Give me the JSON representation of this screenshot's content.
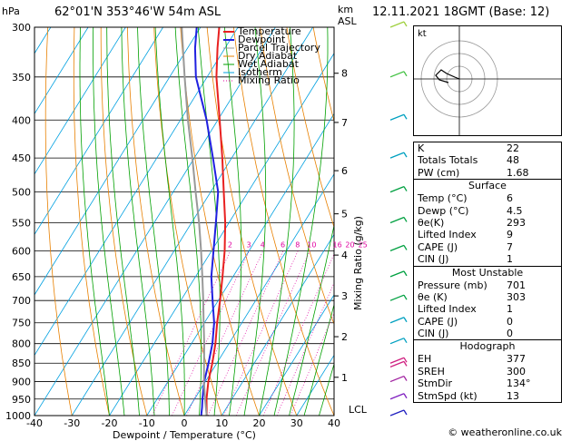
{
  "header": {
    "location": "62°01'N  353°46'W  54m  ASL",
    "datetime": "12.11.2021  18GMT  (Base: 12)",
    "hpa_unit": "hPa",
    "km_unit": "km",
    "asl_unit": "ASL"
  },
  "chart_data": {
    "type": "line",
    "xlabel": "Dewpoint / Temperature (°C)",
    "ylabel_right": "Mixing Ratio (g/kg)",
    "x_ticks": [
      -40,
      -30,
      -20,
      -10,
      0,
      10,
      20,
      30,
      40
    ],
    "xlim": [
      -40,
      40
    ],
    "ylim_hpa": [
      1000,
      300
    ],
    "y_scale": "log",
    "pressure_ticks": [
      300,
      350,
      400,
      450,
      500,
      550,
      600,
      650,
      700,
      750,
      800,
      850,
      900,
      950,
      1000
    ],
    "km_ticks": [
      {
        "km": "1",
        "p": 888
      },
      {
        "km": "2",
        "p": 783
      },
      {
        "km": "3",
        "p": 690
      },
      {
        "km": "4",
        "p": 608
      },
      {
        "km": "5",
        "p": 535
      },
      {
        "km": "6",
        "p": 468
      },
      {
        "km": "7",
        "p": 403
      },
      {
        "km": "8",
        "p": 346
      }
    ],
    "lcl": {
      "label": "LCL",
      "p": 981
    },
    "mixing_ratio_labels": [
      "2",
      "3",
      "4",
      "6",
      "8",
      "10",
      "16",
      "20",
      "25"
    ],
    "legend": [
      "Temperature",
      "Dewpoint",
      "Parcel Trajectory",
      "Dry Adiabat",
      "Wet Adiabat",
      "Isotherm",
      "Mixing Ratio"
    ],
    "legend_colors": [
      "#e82020",
      "#2020e0",
      "#999999",
      "#e88000",
      "#00a000",
      "#00a0e0",
      "#e000a0"
    ],
    "series": [
      {
        "name": "Temperature",
        "points": [
          [
            1000,
            6
          ],
          [
            975,
            4.6
          ],
          [
            950,
            3.2
          ],
          [
            900,
            0.8
          ],
          [
            850,
            -1.2
          ],
          [
            800,
            -3.6
          ],
          [
            750,
            -6.6
          ],
          [
            700,
            -9.5
          ],
          [
            650,
            -12.8
          ],
          [
            600,
            -16.5
          ],
          [
            550,
            -21
          ],
          [
            500,
            -26.5
          ],
          [
            450,
            -32.5
          ],
          [
            400,
            -39.5
          ],
          [
            350,
            -47.5
          ],
          [
            320,
            -52
          ],
          [
            300,
            -55
          ]
        ]
      },
      {
        "name": "Dewpoint",
        "points": [
          [
            1000,
            4.5
          ],
          [
            975,
            3.4
          ],
          [
            950,
            2.1
          ],
          [
            900,
            -0.3
          ],
          [
            850,
            -2.2
          ],
          [
            800,
            -4.4
          ],
          [
            750,
            -7.4
          ],
          [
            700,
            -11.5
          ],
          [
            650,
            -15.8
          ],
          [
            600,
            -19.5
          ],
          [
            550,
            -23.5
          ],
          [
            500,
            -28
          ],
          [
            450,
            -35
          ],
          [
            400,
            -43
          ],
          [
            350,
            -53
          ],
          [
            320,
            -58
          ],
          [
            300,
            -61
          ]
        ]
      },
      {
        "name": "Parcel Trajectory",
        "points": [
          [
            1000,
            6
          ],
          [
            981,
            4.8
          ],
          [
            950,
            2.8
          ],
          [
            900,
            -0.4
          ],
          [
            850,
            -3.4
          ],
          [
            800,
            -6.6
          ],
          [
            750,
            -10.2
          ],
          [
            700,
            -14
          ],
          [
            650,
            -18.2
          ],
          [
            600,
            -22.8
          ],
          [
            550,
            -28
          ],
          [
            500,
            -34
          ],
          [
            450,
            -40.5
          ],
          [
            400,
            -48
          ],
          [
            350,
            -56
          ],
          [
            300,
            -65
          ]
        ]
      }
    ],
    "winds": [
      {
        "p": 1000,
        "color": "#2020c0"
      },
      {
        "p": 950,
        "color": "#8020c0"
      },
      {
        "p": 900,
        "color": "#a020a0"
      },
      {
        "p": 860,
        "color": "#d02080"
      },
      {
        "p": 850,
        "color": "#d02080"
      },
      {
        "p": 800,
        "color": "#00a0c0"
      },
      {
        "p": 750,
        "color": "#00a0c0"
      },
      {
        "p": 700,
        "color": "#00a040"
      },
      {
        "p": 650,
        "color": "#00a040"
      },
      {
        "p": 600,
        "color": "#00a040"
      },
      {
        "p": 550,
        "color": "#00a040"
      },
      {
        "p": 500,
        "color": "#00a040"
      },
      {
        "p": 450,
        "color": "#00a0c0"
      },
      {
        "p": 400,
        "color": "#00a0c0"
      },
      {
        "p": 350,
        "color": "#40c040"
      },
      {
        "p": 300,
        "color": "#a0d040"
      }
    ]
  },
  "hodograph": {
    "unit_label": "kt"
  },
  "indices": {
    "rows": [
      {
        "k": "K",
        "v": "22"
      },
      {
        "k": "Totals Totals",
        "v": "48"
      },
      {
        "k": "PW (cm)",
        "v": "1.68"
      }
    ]
  },
  "surface": {
    "title": "Surface",
    "rows": [
      {
        "k": "Temp (°C)",
        "v": "6"
      },
      {
        "k": "Dewp (°C)",
        "v": "4.5"
      },
      {
        "k": "θe(K)",
        "v": "293"
      },
      {
        "k": "Lifted Index",
        "v": "9"
      },
      {
        "k": "CAPE (J)",
        "v": "7"
      },
      {
        "k": "CIN (J)",
        "v": "1"
      }
    ]
  },
  "most_unstable": {
    "title": "Most Unstable",
    "rows": [
      {
        "k": "Pressure (mb)",
        "v": "701"
      },
      {
        "k": "θe (K)",
        "v": "303"
      },
      {
        "k": "Lifted Index",
        "v": "1"
      },
      {
        "k": "CAPE (J)",
        "v": "0"
      },
      {
        "k": "CIN (J)",
        "v": "0"
      }
    ]
  },
  "hodo_table": {
    "title": "Hodograph",
    "rows": [
      {
        "k": "EH",
        "v": "377"
      },
      {
        "k": "SREH",
        "v": "300"
      },
      {
        "k": "StmDir",
        "v": "134°"
      },
      {
        "k": "StmSpd (kt)",
        "v": "13"
      }
    ]
  },
  "copyright": "© weatheronline.co.uk"
}
